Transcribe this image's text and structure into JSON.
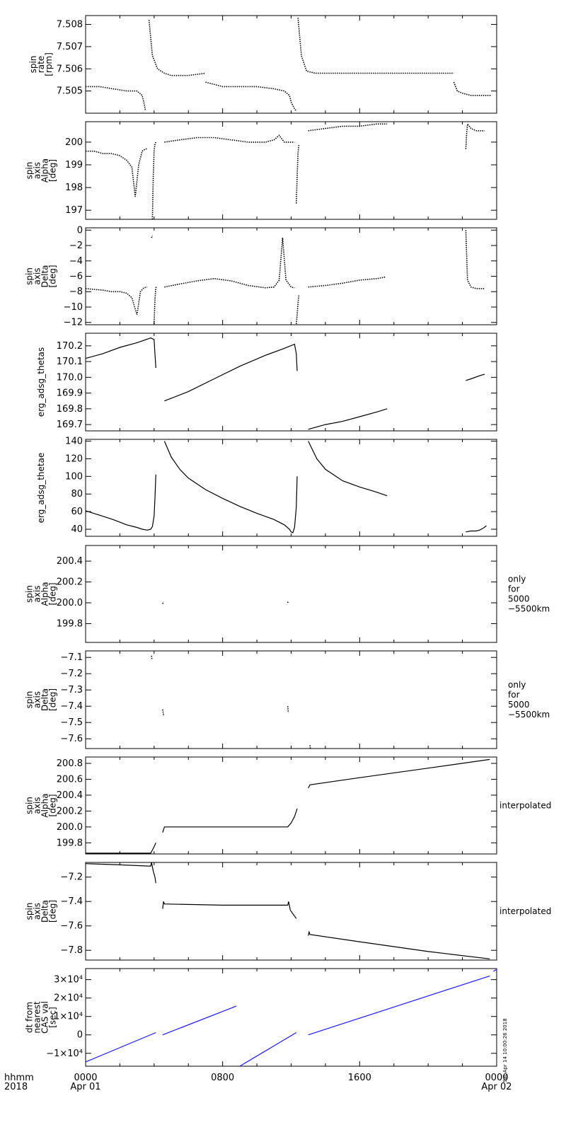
{
  "chart_data": [
    {
      "type": "scatter",
      "ylabel": [
        "spin",
        "rate",
        "[rpm]"
      ],
      "side_note": [],
      "ylim": [
        7.504,
        7.5084
      ],
      "yticks": [
        7.505,
        7.506,
        7.507,
        7.508
      ],
      "tick_labels": [
        "7.505",
        "7.506",
        "7.507",
        "7.508"
      ],
      "color": "#000000",
      "segments": [
        {
          "x": [
            0.0,
            0.8,
            1.6,
            2.4,
            3.0,
            3.3,
            3.4,
            3.5
          ],
          "y": [
            7.5052,
            7.5052,
            7.5051,
            7.505,
            7.505,
            7.5048,
            7.5045,
            7.5041
          ]
        },
        {
          "x": [
            3.7,
            3.9,
            4.2,
            4.6,
            5.0,
            6.0,
            7.0
          ],
          "y": [
            7.5082,
            7.5066,
            7.506,
            7.5058,
            7.5057,
            7.5057,
            7.5058
          ]
        },
        {
          "x": [
            7.0,
            8.0,
            9.0,
            10.0,
            11.0,
            11.6,
            11.9,
            12.0,
            12.2,
            12.3
          ],
          "y": [
            7.5054,
            7.5052,
            7.5052,
            7.5052,
            7.5051,
            7.505,
            7.5048,
            7.5045,
            7.5042,
            7.5041
          ]
        },
        {
          "x": [
            12.4,
            12.6,
            12.9,
            13.4,
            15.0,
            18.0,
            20.0,
            21.0,
            21.5
          ],
          "y": [
            7.5083,
            7.5066,
            7.5059,
            7.5058,
            7.5058,
            7.5058,
            7.5058,
            7.5058,
            7.5058
          ]
        },
        {
          "x": [
            21.5,
            21.7,
            22.0,
            22.5,
            23.0,
            23.7
          ],
          "y": [
            7.5054,
            7.505,
            7.5049,
            7.5048,
            7.5048,
            7.5048
          ]
        }
      ]
    },
    {
      "type": "scatter",
      "ylabel": [
        "spin",
        "axis",
        "Alpha",
        "[deg]"
      ],
      "side_note": [],
      "ylim": [
        196.6,
        200.9
      ],
      "yticks": [
        197,
        198,
        199,
        200
      ],
      "tick_labels": [
        "197",
        "198",
        "199",
        "200"
      ],
      "color": "#000000",
      "segments": [
        {
          "x": [
            0.0,
            0.5,
            1.0,
            1.5,
            2.0,
            2.4,
            2.7,
            2.9,
            3.1,
            3.3,
            3.5,
            3.6
          ],
          "y": [
            199.6,
            199.6,
            199.5,
            199.5,
            199.4,
            199.2,
            198.9,
            197.6,
            199.0,
            199.6,
            199.7,
            199.7
          ]
        },
        {
          "x": [
            3.9,
            3.95,
            4.0,
            4.05,
            4.1
          ],
          "y": [
            196.6,
            198.5,
            199.6,
            199.9,
            200.0
          ]
        },
        {
          "x": [
            4.6,
            5.5,
            6.5,
            7.5,
            8.5,
            9.5,
            10.5,
            11.0,
            11.3,
            11.6,
            12.0,
            12.2
          ],
          "y": [
            200.0,
            200.1,
            200.2,
            200.2,
            200.1,
            200.0,
            200.0,
            200.1,
            200.3,
            200.0,
            200.0,
            200.0
          ]
        },
        {
          "x": [
            12.3,
            12.35,
            12.4,
            12.45
          ],
          "y": [
            197.3,
            198.5,
            199.5,
            199.9
          ]
        },
        {
          "x": [
            13.0,
            14.0,
            15.0,
            16.0,
            17.0,
            17.6
          ],
          "y": [
            200.5,
            200.6,
            200.7,
            200.7,
            200.8,
            200.8
          ]
        },
        {
          "x": [
            22.2,
            22.25,
            22.3,
            22.5,
            22.8,
            23.3
          ],
          "y": [
            199.7,
            200.4,
            200.8,
            200.6,
            200.5,
            200.5
          ]
        }
      ]
    },
    {
      "type": "scatter",
      "ylabel": [
        "spin",
        "axis",
        "Delta",
        "[deg]"
      ],
      "side_note": [],
      "ylim": [
        -12.3,
        0.3
      ],
      "yticks": [
        -12,
        -10,
        -8,
        -6,
        -4,
        -2,
        0
      ],
      "tick_labels": [
        "−12",
        "−10",
        "−8",
        "−6",
        "−4",
        "−2",
        "0"
      ],
      "color": "#000000",
      "segments": [
        {
          "x": [
            0.0,
            0.5,
            1.0,
            1.5,
            2.0,
            2.4,
            2.7,
            3.0,
            3.2,
            3.4,
            3.6
          ],
          "y": [
            -7.6,
            -7.7,
            -7.8,
            -8.0,
            -8.0,
            -8.2,
            -8.8,
            -11.0,
            -8.0,
            -7.5,
            -7.4
          ]
        },
        {
          "x": [
            3.85,
            3.9
          ],
          "y": [
            -1.0,
            -0.7
          ]
        },
        {
          "x": [
            4.0,
            4.05,
            4.1,
            4.15
          ],
          "y": [
            -12.2,
            -9.0,
            -7.5,
            -7.3
          ]
        },
        {
          "x": [
            4.6,
            5.5,
            6.5,
            7.5,
            8.5,
            9.5,
            10.5,
            11.0,
            11.3,
            11.5,
            11.7,
            12.0,
            12.2
          ],
          "y": [
            -7.4,
            -7.0,
            -6.6,
            -6.3,
            -6.6,
            -7.2,
            -7.5,
            -7.4,
            -6.5,
            -1.0,
            -6.5,
            -7.4,
            -7.5
          ]
        },
        {
          "x": [
            12.3,
            12.35,
            12.4,
            12.45
          ],
          "y": [
            -12.2,
            -11.0,
            -9.5,
            -8.5
          ]
        },
        {
          "x": [
            13.0,
            14.0,
            15.0,
            16.0,
            17.0,
            17.5
          ],
          "y": [
            -7.4,
            -7.2,
            -6.9,
            -6.5,
            -6.3,
            -6.1
          ]
        },
        {
          "x": [
            22.2,
            22.25,
            22.3,
            22.5,
            22.8,
            23.3
          ],
          "y": [
            0.0,
            -3.5,
            -6.5,
            -7.4,
            -7.6,
            -7.6
          ]
        }
      ]
    },
    {
      "type": "line",
      "ylabel": [
        "erg_adsg_thetas"
      ],
      "side_note": [],
      "ylim": [
        169.66,
        170.28
      ],
      "yticks": [
        169.7,
        169.8,
        169.9,
        170.0,
        170.1,
        170.2
      ],
      "tick_labels": [
        "169.7",
        "169.8",
        "169.9",
        "170.0",
        "170.1",
        "170.2"
      ],
      "color": "#000000",
      "segments": [
        {
          "x": [
            0.0,
            1.0,
            2.0,
            3.0,
            3.8,
            4.0,
            4.05,
            4.1
          ],
          "y": [
            170.12,
            170.15,
            170.19,
            170.22,
            170.25,
            170.24,
            170.15,
            170.06
          ]
        },
        {
          "x": [
            4.6,
            6.0,
            7.5,
            9.0,
            10.5,
            11.5,
            12.2,
            12.3,
            12.35
          ],
          "y": [
            169.85,
            169.91,
            169.99,
            170.07,
            170.14,
            170.18,
            170.21,
            170.15,
            170.04
          ]
        },
        {
          "x": [
            13.0,
            14.0,
            15.0,
            16.0,
            17.0,
            17.6
          ],
          "y": [
            169.67,
            169.7,
            169.72,
            169.75,
            169.78,
            169.8
          ]
        },
        {
          "x": [
            22.2,
            22.5,
            23.0,
            23.3
          ],
          "y": [
            169.98,
            169.99,
            170.01,
            170.02
          ]
        }
      ]
    },
    {
      "type": "line",
      "ylabel": [
        "erg_adsg_thetae"
      ],
      "side_note": [],
      "ylim": [
        32,
        142
      ],
      "yticks": [
        40,
        60,
        80,
        100,
        120,
        140
      ],
      "tick_labels": [
        "40",
        "60",
        "80",
        "100",
        "120",
        "140"
      ],
      "color": "#000000",
      "segments": [
        {
          "x": [
            0.0,
            0.8,
            1.6,
            2.4,
            3.0,
            3.3,
            3.6,
            3.8,
            3.9,
            4.0,
            4.05,
            4.1
          ],
          "y": [
            61,
            56,
            51,
            45,
            42,
            40,
            39,
            40,
            43,
            55,
            75,
            102
          ]
        },
        {
          "x": [
            4.6,
            5.0,
            5.5,
            6.0,
            7.0,
            8.0,
            9.0,
            10.0,
            11.0,
            11.6,
            11.9,
            12.0,
            12.1,
            12.2,
            12.3,
            12.35
          ],
          "y": [
            140,
            122,
            108,
            98,
            85,
            75,
            66,
            58,
            51,
            45,
            40,
            37,
            36,
            42,
            65,
            100
          ]
        },
        {
          "x": [
            13.0,
            13.5,
            14.0,
            15.0,
            16.0,
            17.0,
            17.6
          ],
          "y": [
            140,
            120,
            108,
            95,
            88,
            82,
            78
          ]
        },
        {
          "x": [
            22.2,
            22.5,
            22.8,
            23.0,
            23.2,
            23.4
          ],
          "y": [
            37,
            38,
            38,
            39,
            41,
            44
          ]
        }
      ]
    },
    {
      "type": "scatter",
      "ylabel": [
        "spin",
        "axis",
        "Alpha",
        "[deg]"
      ],
      "side_note": [
        "only",
        "for",
        "5000",
        "−5500km"
      ],
      "ylim": [
        199.62,
        200.55
      ],
      "yticks": [
        199.8,
        200.0,
        200.2,
        200.4
      ],
      "tick_labels": [
        "199.8",
        "200.0",
        "200.2",
        "200.4"
      ],
      "color": "#000000",
      "segments": [
        {
          "x": [
            4.5,
            4.55
          ],
          "y": [
            199.99,
            200.01
          ]
        },
        {
          "x": [
            11.8,
            11.82
          ],
          "y": [
            200.0,
            200.01
          ]
        }
      ]
    },
    {
      "type": "scatter",
      "ylabel": [
        "spin",
        "axis",
        "Delta",
        "[deg]"
      ],
      "side_note": [
        "only",
        "for",
        "5000",
        "−5500km"
      ],
      "ylim": [
        -7.66,
        -7.06
      ],
      "yticks": [
        -7.6,
        -7.5,
        -7.4,
        -7.3,
        -7.2,
        -7.1
      ],
      "tick_labels": [
        "−7.6",
        "−7.5",
        "−7.4",
        "−7.3",
        "−7.2",
        "−7.1"
      ],
      "color": "#000000",
      "segments": [
        {
          "x": [
            3.85,
            3.87
          ],
          "y": [
            -7.09,
            -7.11
          ]
        },
        {
          "x": [
            4.5,
            4.53,
            4.56
          ],
          "y": [
            -7.42,
            -7.44,
            -7.46
          ]
        },
        {
          "x": [
            11.8,
            11.82,
            11.84
          ],
          "y": [
            -7.4,
            -7.42,
            -7.44
          ]
        },
        {
          "x": [
            13.1,
            13.12
          ],
          "y": [
            -7.64,
            -7.66
          ]
        }
      ]
    },
    {
      "type": "line",
      "ylabel": [
        "spin",
        "axis",
        "Alpha",
        "[deg]"
      ],
      "side_note": [
        "interpolated"
      ],
      "ylim": [
        199.66,
        200.88
      ],
      "yticks": [
        199.8,
        200.0,
        200.2,
        200.4,
        200.6,
        200.8
      ],
      "tick_labels": [
        "199.8",
        "200.0",
        "200.2",
        "200.4",
        "200.6",
        "200.8"
      ],
      "color": "#000000",
      "segments": [
        {
          "x": [
            0.0,
            2.0,
            3.5,
            3.8,
            4.0,
            4.1
          ],
          "y": [
            199.67,
            199.67,
            199.67,
            199.67,
            199.75,
            199.8
          ]
        },
        {
          "x": [
            4.5,
            4.6,
            8.0,
            11.8,
            12.0,
            12.2,
            12.35
          ],
          "y": [
            199.93,
            200.0,
            200.0,
            200.0,
            200.05,
            200.13,
            200.23
          ]
        },
        {
          "x": [
            13.0,
            13.1,
            16.0,
            20.0,
            23.6
          ],
          "y": [
            200.49,
            200.53,
            200.62,
            200.74,
            200.85
          ]
        }
      ]
    },
    {
      "type": "line",
      "ylabel": [
        "spin",
        "axis",
        "Delta",
        "[deg]"
      ],
      "side_note": [
        "interpolated"
      ],
      "ylim": [
        -7.88,
        -7.08
      ],
      "yticks": [
        -7.8,
        -7.6,
        -7.4,
        -7.2
      ],
      "tick_labels": [
        "−7.8",
        "−7.6",
        "−7.4",
        "−7.2"
      ],
      "color": "#000000",
      "segments": [
        {
          "x": [
            0.0,
            2.0,
            3.8,
            3.85,
            3.95,
            4.05,
            4.1
          ],
          "y": [
            -7.09,
            -7.1,
            -7.11,
            -7.08,
            -7.15,
            -7.2,
            -7.25
          ]
        },
        {
          "x": [
            4.5,
            4.55,
            4.6,
            8.0,
            11.8,
            11.85,
            11.95,
            12.1,
            12.3
          ],
          "y": [
            -7.46,
            -7.4,
            -7.42,
            -7.43,
            -7.43,
            -7.4,
            -7.47,
            -7.5,
            -7.54
          ]
        },
        {
          "x": [
            13.0,
            13.05,
            13.1,
            16.0,
            20.0,
            23.6
          ],
          "y": [
            -7.68,
            -7.65,
            -7.67,
            -7.73,
            -7.81,
            -7.87
          ]
        }
      ]
    },
    {
      "type": "line",
      "ylabel": [
        "dt from",
        "nearest",
        "CAS val",
        "[sec]"
      ],
      "side_note": [],
      "ylim": [
        -17000,
        36000
      ],
      "yticks": [
        -10000,
        0,
        10000,
        20000,
        30000
      ],
      "tick_labels": [
        "−1×10⁴",
        "0",
        "1×10⁴",
        "2×10⁴",
        "3×10⁴"
      ],
      "color": "#1a1aff",
      "segments": [
        {
          "x": [
            0.0,
            4.1
          ],
          "y": [
            -14700,
            1260
          ]
        },
        {
          "x": [
            4.5,
            8.8
          ],
          "y": [
            0,
            15600
          ]
        },
        {
          "x": [
            9.0,
            12.3
          ],
          "y": [
            -17000,
            1260
          ]
        },
        {
          "x": [
            13.0,
            23.6
          ],
          "y": [
            0,
            32000
          ]
        },
        {
          "x": [
            23.8,
            24.0
          ],
          "y": [
            34500,
            35500
          ]
        }
      ]
    }
  ],
  "xaxis": {
    "range": [
      0,
      24
    ],
    "tick_hours": [
      0,
      8,
      16,
      24
    ],
    "tick_labels": [
      "0000\nApr 01",
      "0800",
      "1600",
      "0000\nApr 02"
    ],
    "left_label": "hhmm\n2018"
  },
  "credit_text": "Sat Apr 14 10:00:26 2018"
}
